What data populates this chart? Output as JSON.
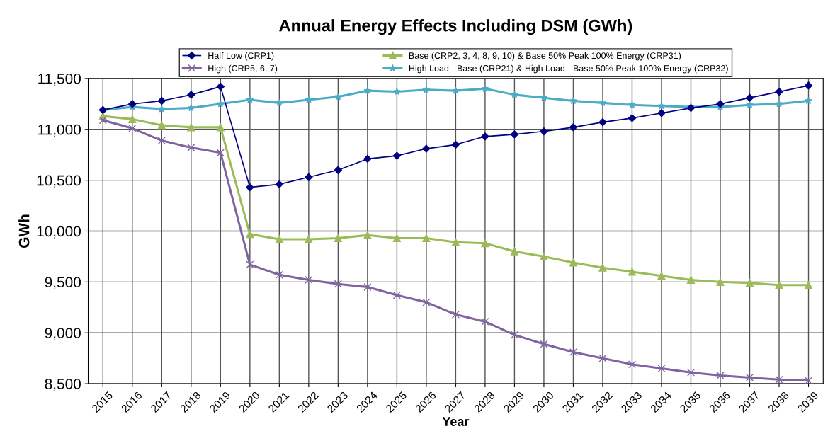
{
  "chart_data": {
    "type": "line",
    "title": "Annual Energy Effects Including DSM (GWh)",
    "xlabel": "Year",
    "ylabel": "GWh",
    "categories": [
      "2015",
      "2016",
      "2017",
      "2018",
      "2019",
      "2020",
      "2021",
      "2022",
      "2023",
      "2024",
      "2025",
      "2026",
      "2027",
      "2028",
      "2029",
      "2030",
      "2031",
      "2032",
      "2033",
      "2034",
      "2035",
      "2036",
      "2037",
      "2038",
      "2039"
    ],
    "series": [
      {
        "name": "Half Low (CRP1)",
        "color": "#000080",
        "marker": "diamond",
        "values": [
          11190,
          11250,
          11280,
          11340,
          11420,
          10430,
          10460,
          10530,
          10600,
          10710,
          10740,
          10810,
          10850,
          10930,
          10950,
          10980,
          11020,
          11070,
          11110,
          11160,
          11210,
          11250,
          11310,
          11370,
          11430
        ]
      },
      {
        "name": "Base (CRP2, 3, 4, 8, 9, 10) & Base 50% Peak 100% Energy (CRP31)",
        "color": "#9bbb59",
        "marker": "triangle",
        "values": [
          11130,
          11100,
          11040,
          11020,
          11020,
          9970,
          9920,
          9920,
          9930,
          9960,
          9930,
          9930,
          9890,
          9880,
          9800,
          9750,
          9690,
          9640,
          9600,
          9560,
          9520,
          9500,
          9490,
          9470,
          9470
        ]
      },
      {
        "name": "High (CRP5, 6, 7)",
        "color": "#8064a2",
        "marker": "cross",
        "values": [
          11090,
          11010,
          10890,
          10820,
          10770,
          9670,
          9570,
          9520,
          9480,
          9450,
          9370,
          9300,
          9180,
          9110,
          8980,
          8890,
          8810,
          8750,
          8690,
          8650,
          8610,
          8580,
          8560,
          8540,
          8530
        ]
      },
      {
        "name": "High Load - Base (CRP21) & High Load - Base 50% Peak 100% Energy (CRP32)",
        "color": "#4bacc6",
        "marker": "star",
        "values": [
          11190,
          11220,
          11200,
          11210,
          11250,
          11290,
          11260,
          11290,
          11320,
          11380,
          11370,
          11390,
          11380,
          11400,
          11340,
          11310,
          11280,
          11260,
          11240,
          11230,
          11220,
          11220,
          11240,
          11250,
          11280
        ]
      }
    ],
    "ylim": [
      8500,
      11500
    ],
    "yticks": [
      {
        "value": 8500,
        "label": "8,500"
      },
      {
        "value": 9000,
        "label": "9,000"
      },
      {
        "value": 9500,
        "label": "9,500"
      },
      {
        "value": 10000,
        "label": "10,000"
      },
      {
        "value": 10500,
        "label": "10,500"
      },
      {
        "value": 11000,
        "label": "11,000"
      },
      {
        "value": 11500,
        "label": "11,500"
      }
    ],
    "grid": true,
    "legend": "top",
    "line_style": "solid"
  }
}
